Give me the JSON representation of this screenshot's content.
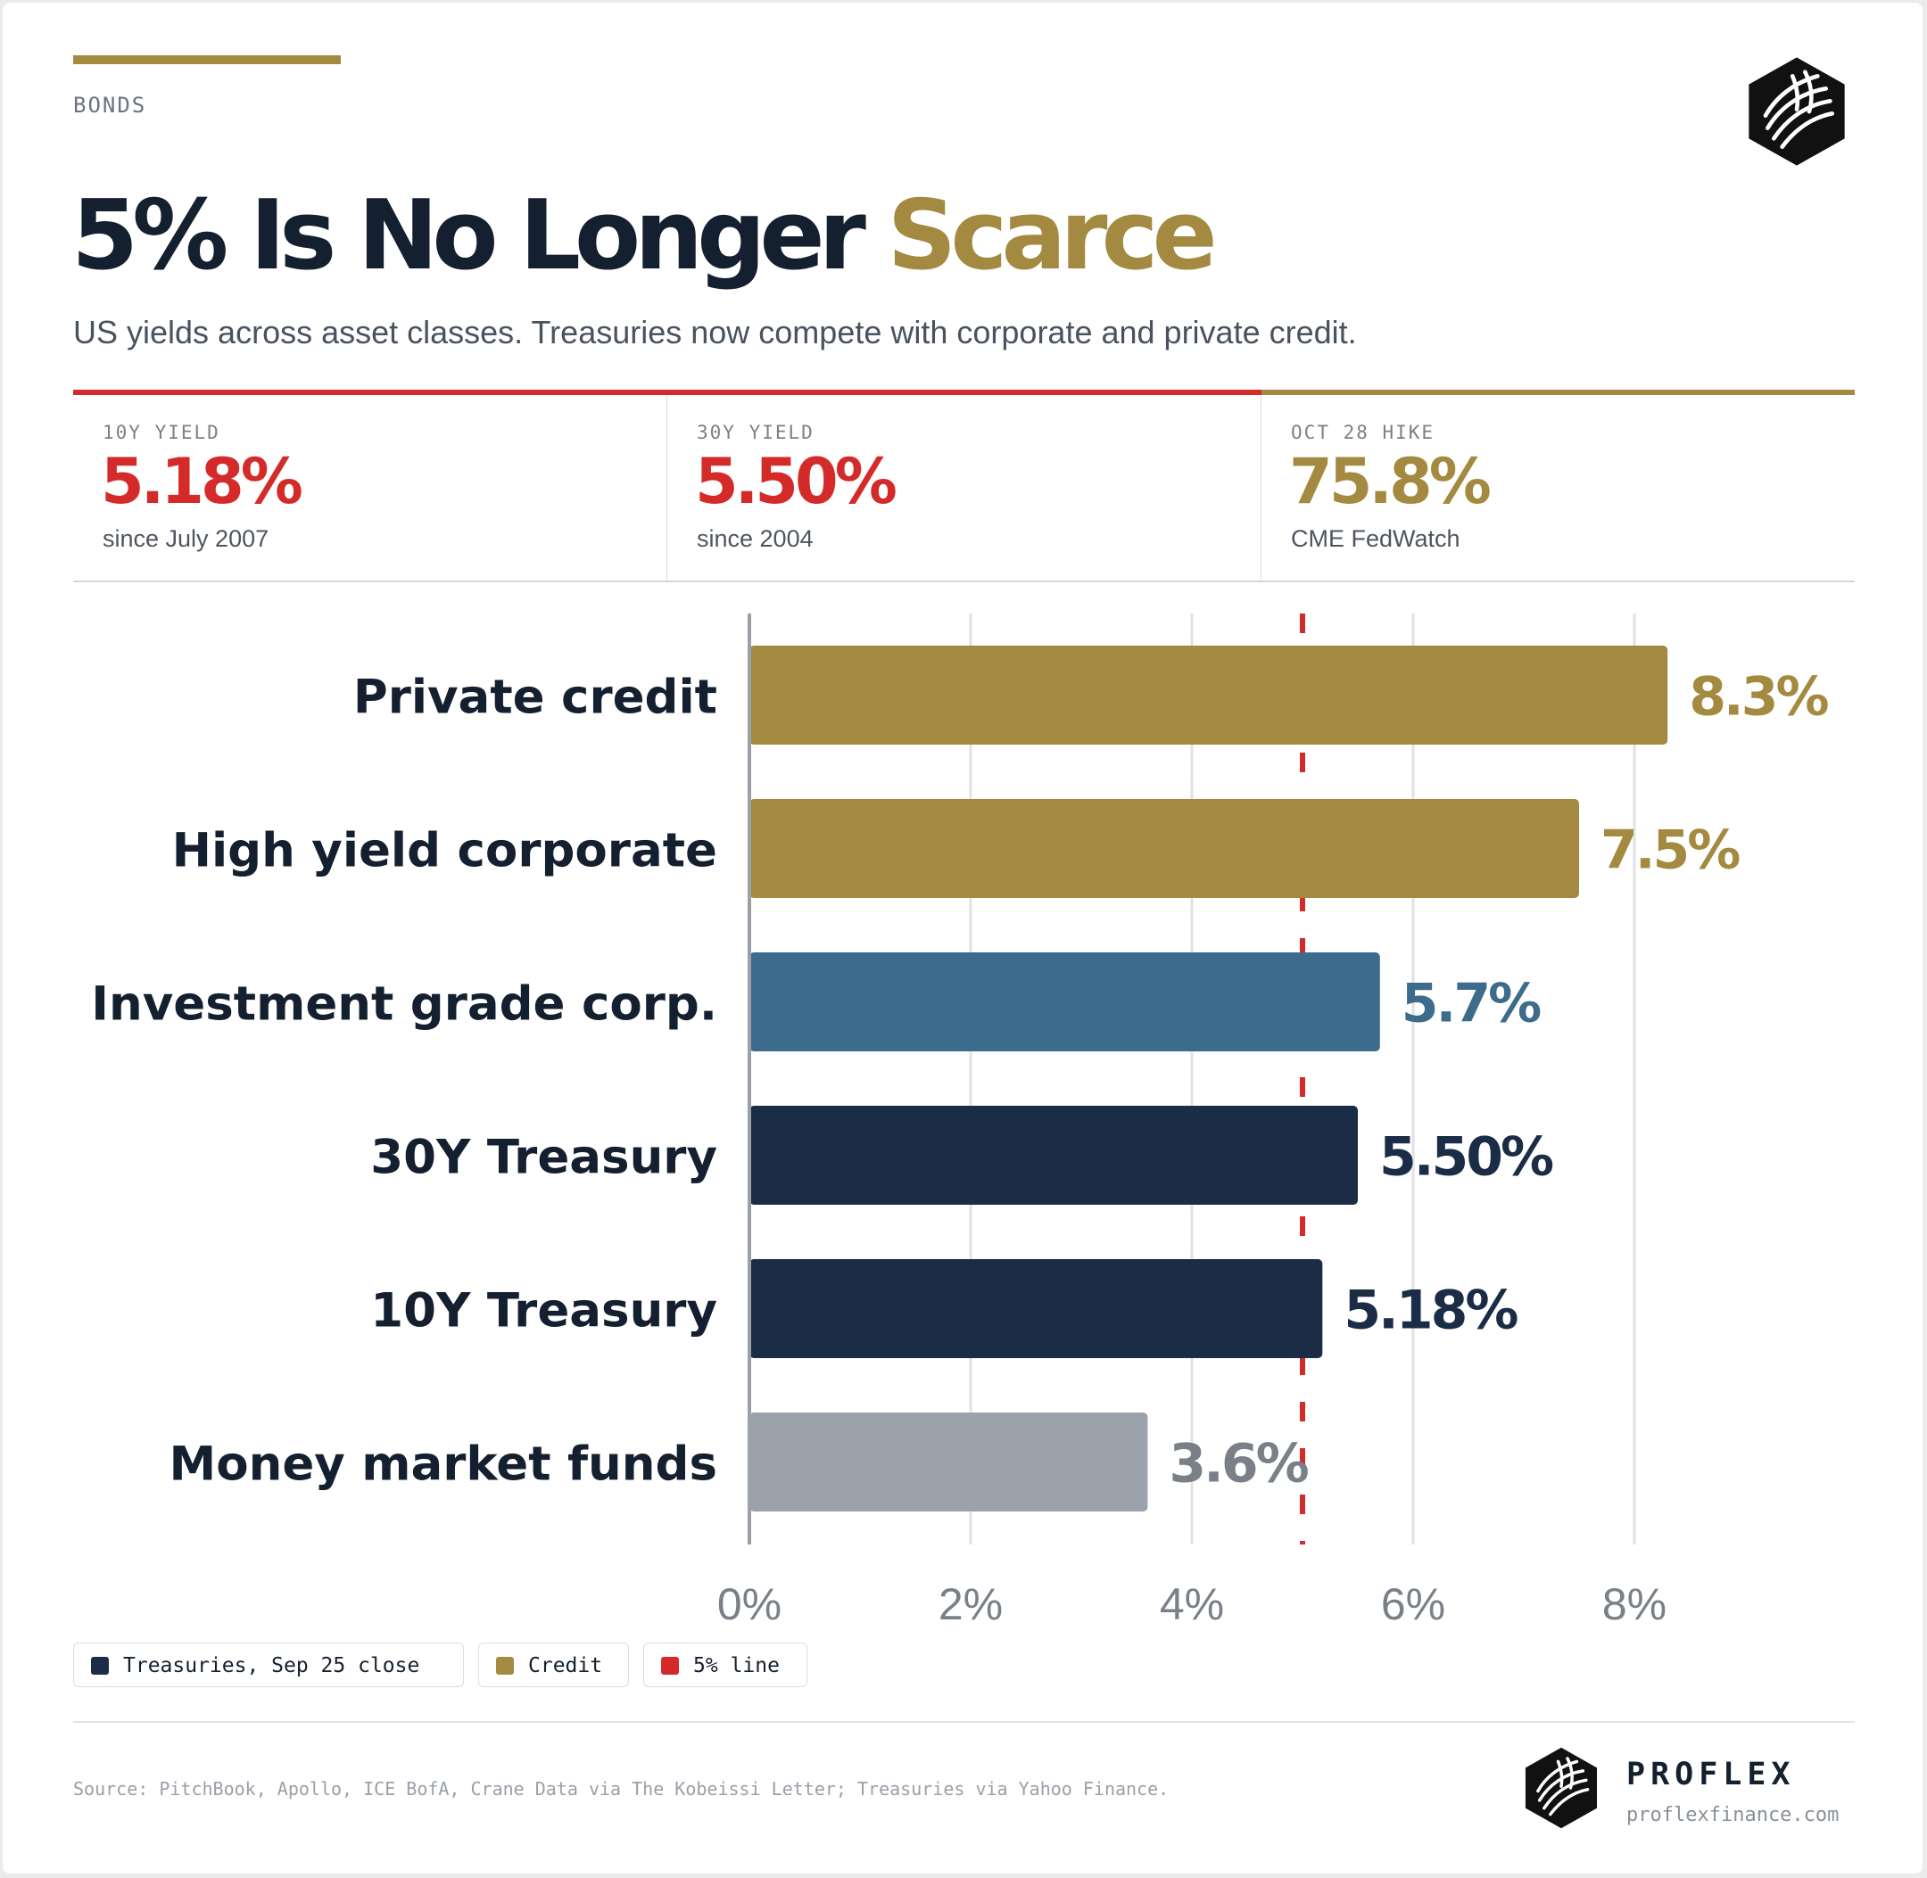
{
  "kicker": "BONDS",
  "title": {
    "main": "5% Is No Longer",
    "highlight": "Scarce"
  },
  "subtitle": "US yields across asset classes. Treasuries now compete with corporate and private credit.",
  "stats": [
    {
      "label": "10Y YIELD",
      "value": "5.18%",
      "note": "since July 2007",
      "color": "#d42a2a"
    },
    {
      "label": "30Y YIELD",
      "value": "5.50%",
      "note": "since 2004",
      "color": "#d42a2a"
    },
    {
      "label": "OCT 28 HIKE",
      "value": "75.8%",
      "note": "CME FedWatch",
      "color": "#a48a40"
    }
  ],
  "chart_data": {
    "type": "bar",
    "orientation": "horizontal",
    "categories": [
      "Private credit",
      "High yield corporate",
      "Investment grade corp.",
      "30Y Treasury",
      "10Y Treasury",
      "Money market funds"
    ],
    "values": [
      8.3,
      7.5,
      5.7,
      5.5,
      5.18,
      3.6
    ],
    "value_labels": [
      "8.3%",
      "7.5%",
      "5.7%",
      "5.50%",
      "5.18%",
      "3.6%"
    ],
    "bar_colors": [
      "#a48a40",
      "#a48a40",
      "#3d6b8c",
      "#1b2c47",
      "#1b2c47",
      "#9ba2ac"
    ],
    "label_colors": [
      "#a48a40",
      "#a48a40",
      "#3d6b8c",
      "#1b2c47",
      "#1b2c47",
      "#7a8088"
    ],
    "xlim": [
      0,
      10
    ],
    "xticks": [
      0,
      2,
      4,
      6,
      8
    ],
    "xtick_labels": [
      "0%",
      "2%",
      "4%",
      "6%",
      "8%"
    ],
    "reference_line": {
      "value": 5,
      "color": "#d42a2a",
      "style": "dashed"
    },
    "grid": true
  },
  "legend": [
    {
      "label": "Treasuries, Sep 25 close",
      "color": "#1b2c47"
    },
    {
      "label": "Credit",
      "color": "#a48a40"
    },
    {
      "label": "5% line",
      "color": "#d42a2a"
    }
  ],
  "source": "Source: PitchBook, Apollo, ICE BofA, Crane Data via The Kobeissi Letter; Treasuries via Yahoo Finance.",
  "brand": {
    "name": "PROFLEX",
    "url": "proflexfinance.com"
  }
}
